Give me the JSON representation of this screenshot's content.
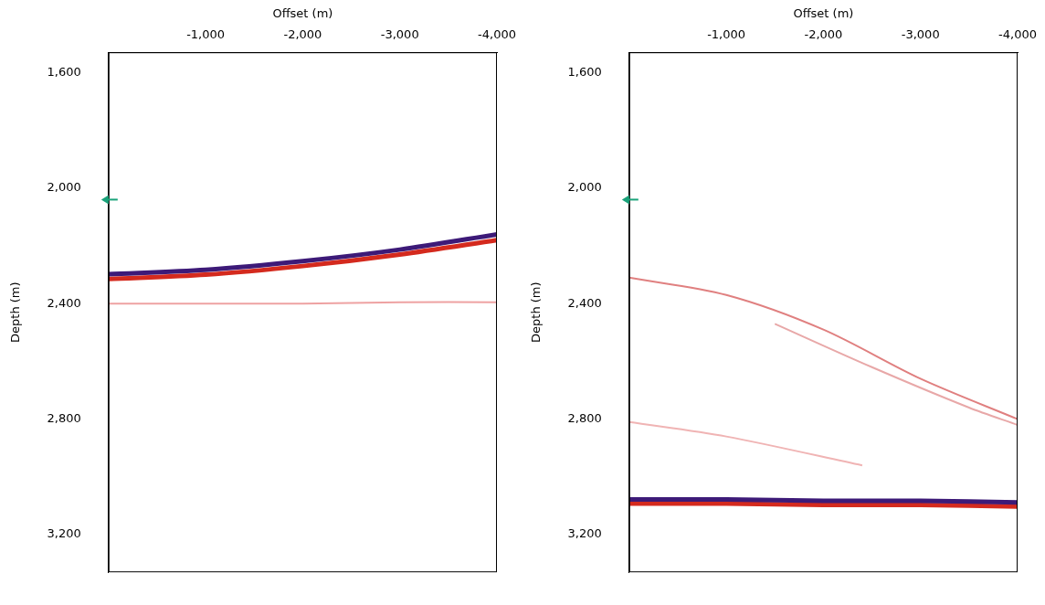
{
  "chart_data": [
    {
      "type": "line",
      "x_label": "Offset (m)",
      "y_label": "Depth (m)",
      "xlim": [
        0,
        -4000
      ],
      "xticks": [
        -1000,
        -2000,
        -3000,
        -4000
      ],
      "ylim": [
        3330,
        1530
      ],
      "yticks": [
        1600,
        2000,
        2400,
        2800,
        3200
      ],
      "grid": false,
      "arrow_depth": 2040,
      "series": [
        {
          "color": "#3d1a78",
          "line_style": "bold",
          "x": [
            0,
            -1000,
            -2000,
            -3000,
            -4000
          ],
          "values": [
            2298,
            2283,
            2253,
            2213,
            2160
          ]
        },
        {
          "color": "#d42a1e",
          "line_style": "bold",
          "x": [
            0,
            -1000,
            -2000,
            -3000,
            -4000
          ],
          "values": [
            2315,
            2300,
            2270,
            2230,
            2180
          ]
        },
        {
          "color": "#eea2a2",
          "line_style": "thin",
          "x": [
            0,
            -1000,
            -2000,
            -3000,
            -4000
          ],
          "values": [
            2400,
            2400,
            2400,
            2395,
            2395
          ]
        }
      ]
    },
    {
      "type": "line",
      "x_label": "Offset (m)",
      "y_label": "Depth (m)",
      "xlim": [
        0,
        -4000
      ],
      "xticks": [
        -1000,
        -2000,
        -3000,
        -4000
      ],
      "ylim": [
        3330,
        1530
      ],
      "yticks": [
        1600,
        2000,
        2400,
        2800,
        3200
      ],
      "grid": false,
      "arrow_depth": 2040,
      "series": [
        {
          "color": "#e08080",
          "line_style": "thin",
          "x": [
            0,
            -1000,
            -2000,
            -3000,
            -4000
          ],
          "values": [
            2310,
            2370,
            2490,
            2660,
            2800
          ]
        },
        {
          "color": "#e8a8a8",
          "line_style": "thin",
          "x": [
            -1500,
            -2500,
            -3500,
            -4000
          ],
          "values": [
            2470,
            2620,
            2760,
            2820
          ]
        },
        {
          "color": "#f0b4b4",
          "line_style": "thin",
          "x": [
            0,
            -1000,
            -2400
          ],
          "values": [
            2810,
            2860,
            2960
          ]
        },
        {
          "color": "#3d1a78",
          "line_style": "bold",
          "x": [
            0,
            -1000,
            -2000,
            -3000,
            -4000
          ],
          "values": [
            3078,
            3078,
            3083,
            3083,
            3088
          ]
        },
        {
          "color": "#d42a1e",
          "line_style": "bold",
          "x": [
            0,
            -1000,
            -2000,
            -3000,
            -4000
          ],
          "values": [
            3092,
            3092,
            3097,
            3097,
            3102
          ]
        }
      ]
    }
  ]
}
